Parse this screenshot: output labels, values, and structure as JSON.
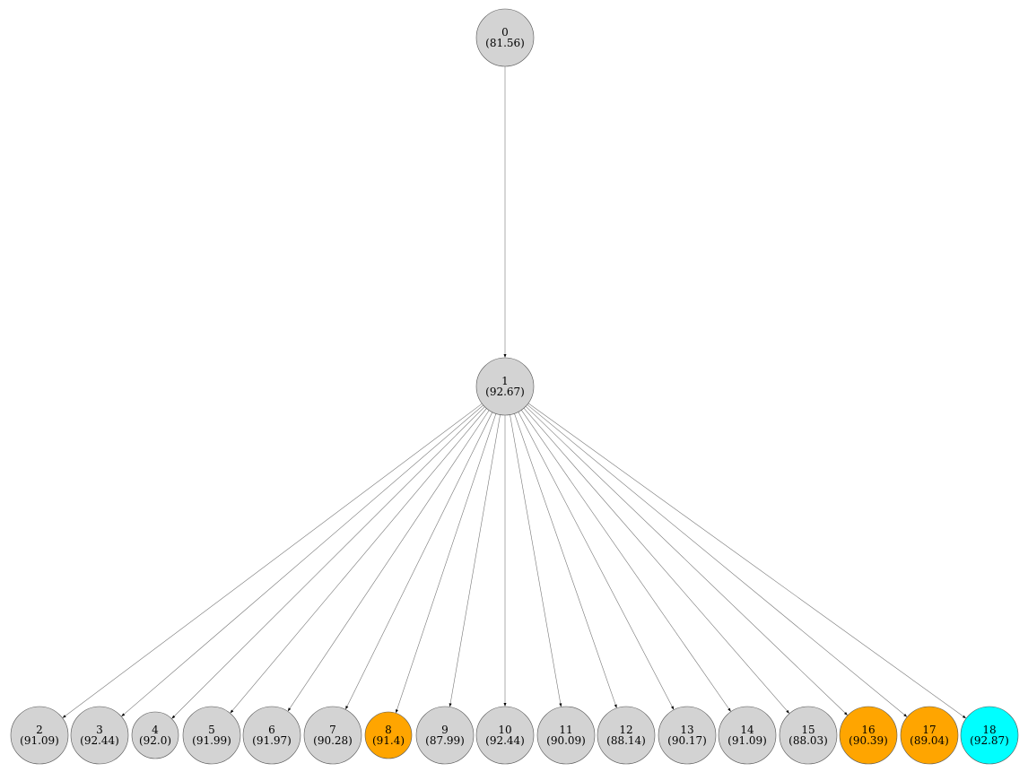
{
  "colors": {
    "default": "#d3d3d3",
    "orange": "#ffa500",
    "cyan": "#00ffff",
    "stroke": "#555555",
    "edge": "#777777"
  },
  "nodes": [
    {
      "id": "0",
      "value": "(81.56)",
      "color": "default"
    },
    {
      "id": "1",
      "value": "(92.67)",
      "color": "default"
    },
    {
      "id": "2",
      "value": "(91.09)",
      "color": "default"
    },
    {
      "id": "3",
      "value": "(92.44)",
      "color": "default"
    },
    {
      "id": "4",
      "value": "(92.0)",
      "color": "default"
    },
    {
      "id": "5",
      "value": "(91.99)",
      "color": "default"
    },
    {
      "id": "6",
      "value": "(91.97)",
      "color": "default"
    },
    {
      "id": "7",
      "value": "(90.28)",
      "color": "default"
    },
    {
      "id": "8",
      "value": "(91.4)",
      "color": "orange"
    },
    {
      "id": "9",
      "value": "(87.99)",
      "color": "default"
    },
    {
      "id": "10",
      "value": "(92.44)",
      "color": "default"
    },
    {
      "id": "11",
      "value": "(90.09)",
      "color": "default"
    },
    {
      "id": "12",
      "value": "(88.14)",
      "color": "default"
    },
    {
      "id": "13",
      "value": "(90.17)",
      "color": "default"
    },
    {
      "id": "14",
      "value": "(91.09)",
      "color": "default"
    },
    {
      "id": "15",
      "value": "(88.03)",
      "color": "default"
    },
    {
      "id": "16",
      "value": "(90.39)",
      "color": "orange"
    },
    {
      "id": "17",
      "value": "(89.04)",
      "color": "orange"
    },
    {
      "id": "18",
      "value": "(92.87)",
      "color": "cyan"
    }
  ],
  "edges": [
    [
      "0",
      "1"
    ],
    [
      "1",
      "2"
    ],
    [
      "1",
      "3"
    ],
    [
      "1",
      "4"
    ],
    [
      "1",
      "5"
    ],
    [
      "1",
      "6"
    ],
    [
      "1",
      "7"
    ],
    [
      "1",
      "8"
    ],
    [
      "1",
      "9"
    ],
    [
      "1",
      "10"
    ],
    [
      "1",
      "11"
    ],
    [
      "1",
      "12"
    ],
    [
      "1",
      "13"
    ],
    [
      "1",
      "14"
    ],
    [
      "1",
      "15"
    ],
    [
      "1",
      "16"
    ],
    [
      "1",
      "17"
    ],
    [
      "1",
      "18"
    ]
  ]
}
